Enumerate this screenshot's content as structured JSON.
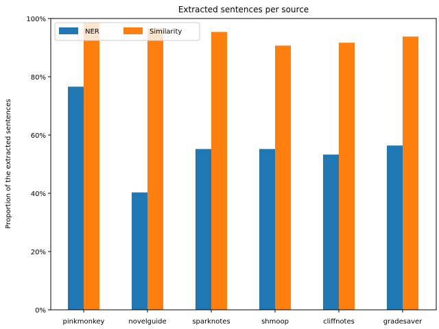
{
  "chart_data": {
    "type": "bar",
    "title": "Extracted sentences per source",
    "xlabel": "",
    "ylabel": "Proportion of the extracted sentences",
    "categories": [
      "pinkmonkey",
      "novelguide",
      "sparknotes",
      "shmoop",
      "cliffnotes",
      "gradesaver"
    ],
    "series": [
      {
        "name": "NER",
        "color": "#1f77b4",
        "values": [
          76.6,
          40.3,
          55.2,
          55.2,
          53.3,
          56.4
        ]
      },
      {
        "name": "Similarity",
        "color": "#ff7f0e",
        "values": [
          98.6,
          96.7,
          95.4,
          90.7,
          91.7,
          93.8
        ]
      }
    ],
    "ylim": [
      0,
      100
    ],
    "yticks": [
      0,
      20,
      40,
      60,
      80,
      100
    ],
    "ytick_labels": [
      "0%",
      "20%",
      "40%",
      "60%",
      "80%",
      "100%"
    ],
    "legend_position": "top-left",
    "grid": false
  }
}
